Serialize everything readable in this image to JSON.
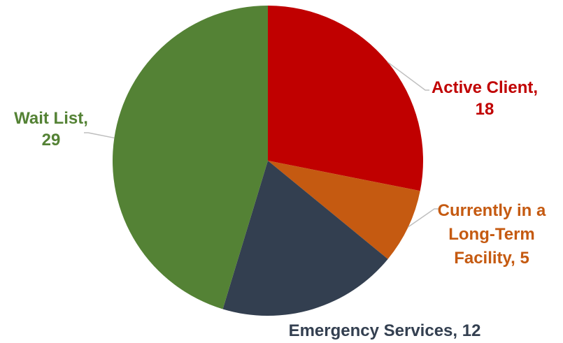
{
  "chart_data": {
    "type": "pie",
    "slices": [
      {
        "name": "Active Client",
        "value": 18,
        "color": "#C00000",
        "label_lines": [
          "Active Client,",
          "18"
        ]
      },
      {
        "name": "Currently in a Long-Term Facility",
        "value": 5,
        "color": "#C55A11",
        "label_lines": [
          "Currently in a",
          "Long-Term",
          "Facility, 5"
        ]
      },
      {
        "name": "Emergency Services",
        "value": 12,
        "color": "#333F50",
        "label_lines": [
          "Emergency Services, 12"
        ]
      },
      {
        "name": "Wait List",
        "value": 29,
        "color": "#548235",
        "label_lines": [
          "Wait List,",
          "29"
        ]
      }
    ],
    "start_angle": "12 o'clock",
    "direction": "clockwise",
    "legend": "none",
    "data_labels": "outside-with-leader-lines"
  }
}
